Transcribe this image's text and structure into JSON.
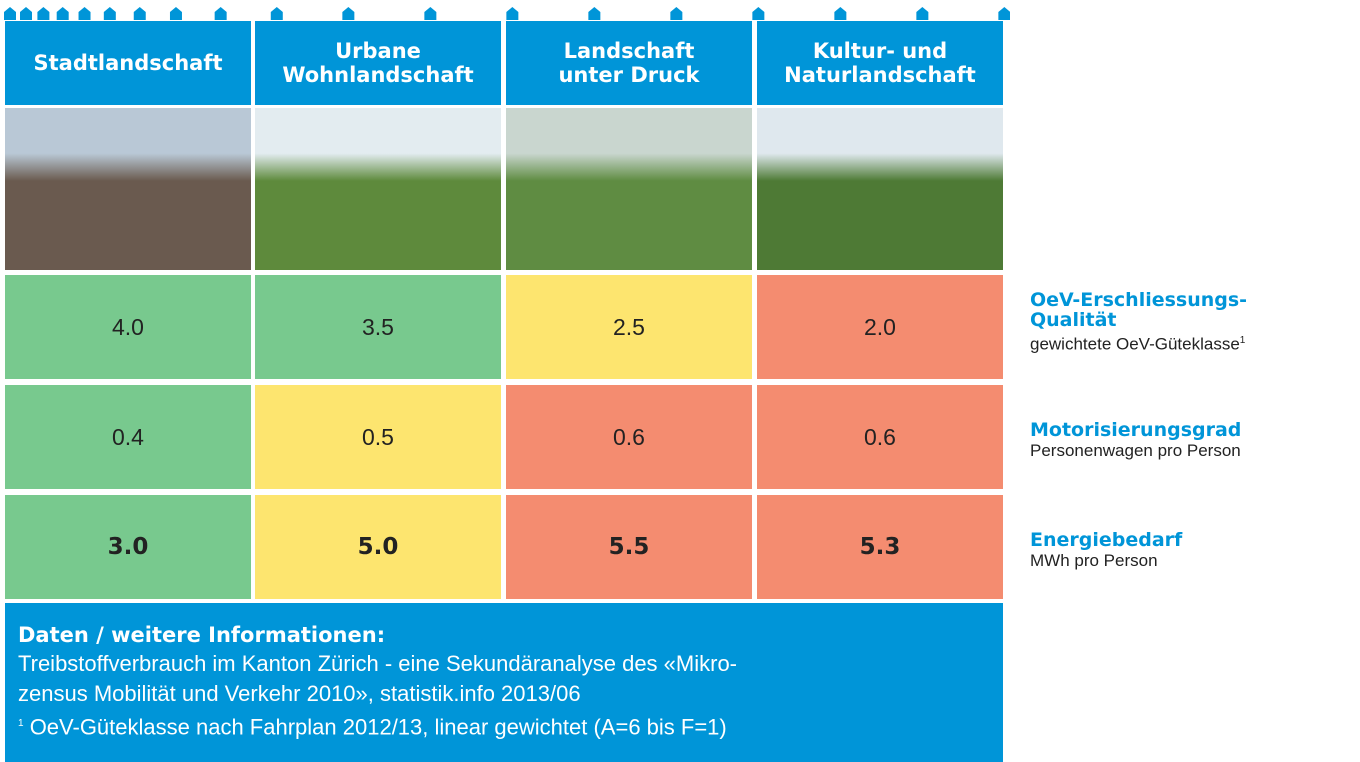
{
  "columns": [
    {
      "lines": [
        "Stadtlandschaft"
      ]
    },
    {
      "lines": [
        "Urbane",
        "Wohnlandschaft"
      ]
    },
    {
      "lines": [
        "Landschaft",
        "unter Druck"
      ]
    },
    {
      "lines": [
        "Kultur- und",
        "Naturlandschaft"
      ]
    }
  ],
  "rows": [
    {
      "values": [
        "4.0",
        "3.5",
        "2.5",
        "2.0"
      ],
      "colors": [
        "#78c98e",
        "#78c98e",
        "#fde56f",
        "#f48c70"
      ],
      "label": [
        "OeV-Erschliessungs-",
        "Qualität"
      ],
      "sublabel": "gewichtete OeV-Güteklasse",
      "footnote_mark": "1"
    },
    {
      "values": [
        "0.4",
        "0.5",
        "0.6",
        "0.6"
      ],
      "colors": [
        "#78c98e",
        "#fde56f",
        "#f48c70",
        "#f48c70"
      ],
      "label": [
        "Motorisierungsgrad"
      ],
      "sublabel": "Personenwagen pro Person"
    },
    {
      "values": [
        "3.0",
        "5.0",
        "5.5",
        "5.3"
      ],
      "colors": [
        "#78c98e",
        "#fde56f",
        "#f48c70",
        "#f48c70"
      ],
      "label": [
        "Energiebedarf"
      ],
      "sublabel": "MWh pro Person",
      "bold": true
    }
  ],
  "footer": {
    "title": "Daten / weitere Informationen:",
    "lines": [
      "Treibstoffverbrauch im Kanton Zürich - eine Sekundäranalyse des «Mikro-",
      "zensus Mobilität und Verkehr 2010», statistik.info 2013/06"
    ],
    "footnote_mark": "1",
    "footnote": "OeV-Güteklasse nach Fahrplan 2012/13, linear gewichtet (A=6 bis F=1)"
  }
}
